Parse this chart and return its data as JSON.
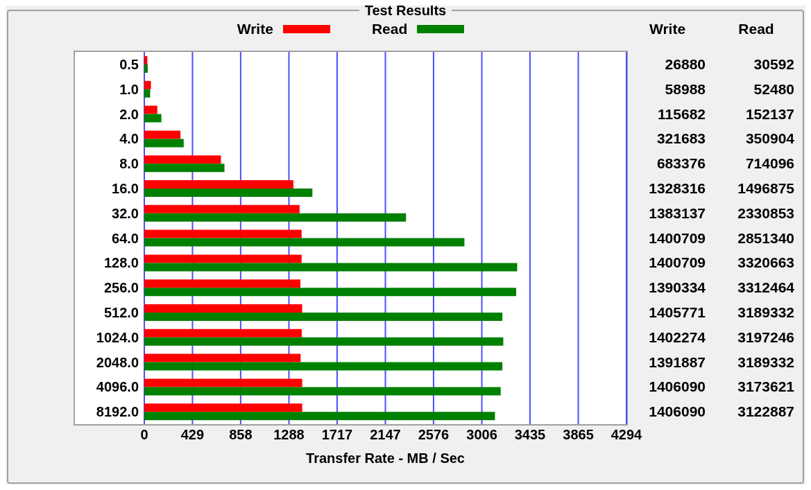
{
  "chart_data": [
    {
      "type": "bar",
      "orientation": "horizontal",
      "title": "Test Results",
      "xlabel": "Transfer Rate - MB / Sec",
      "categories": [
        "0.5",
        "1.0",
        "2.0",
        "4.0",
        "8.0",
        "16.0",
        "32.0",
        "64.0",
        "128.0",
        "256.0",
        "512.0",
        "1024.0",
        "2048.0",
        "4096.0",
        "8192.0"
      ],
      "series": [
        {
          "name": "Write",
          "color": "#ff0000",
          "values": [
            27,
            59,
            116,
            322,
            683,
            1328,
            1383,
            1401,
            1401,
            1390,
            1406,
            1402,
            1392,
            1406,
            1406
          ]
        },
        {
          "name": "Read",
          "color": "#008000",
          "values": [
            31,
            52,
            152,
            351,
            714,
            1497,
            2331,
            2851,
            3321,
            3312,
            3189,
            3197,
            3189,
            3174,
            3123
          ]
        }
      ],
      "xlim": [
        0,
        4294
      ],
      "xticks": [
        0,
        429,
        858,
        1288,
        1717,
        2147,
        2576,
        3006,
        3435,
        3865,
        4294
      ],
      "grid": "x",
      "legend": "top"
    },
    {
      "type": "other",
      "categories": [
        "Write",
        "Read"
      ],
      "annotations": [
        "26880",
        "30592",
        "58988",
        "52480",
        "115682",
        "152137",
        "321683",
        "350904",
        "683376",
        "714096",
        "1328316",
        "1496875",
        "1383137",
        "2330853",
        "1400709",
        "2851340",
        "1400709",
        "3320663",
        "1390334",
        "3312464",
        "1405771",
        "3189332",
        "1402274",
        "3197246",
        "1391887",
        "3189332",
        "1406090",
        "3173621",
        "1406090",
        "3122887"
      ]
    }
  ]
}
